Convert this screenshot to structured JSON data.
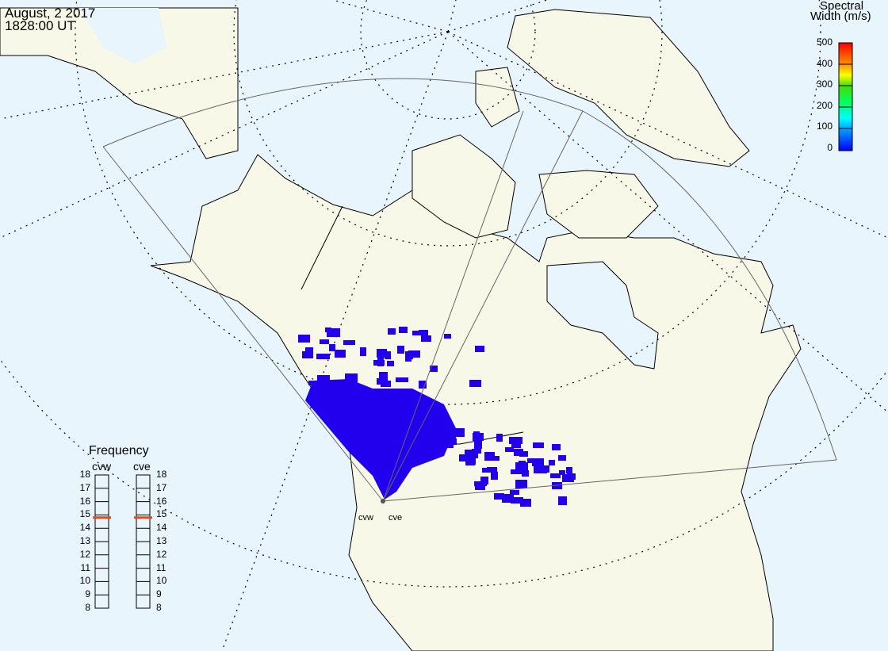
{
  "header": {
    "date": "August, 2 2017",
    "time": "1828:00 UT"
  },
  "colorbar": {
    "title_line1": "Spectral",
    "title_line2": "Width (m/s)",
    "ticks": [
      "500",
      "400",
      "300",
      "200",
      "100",
      "0"
    ],
    "range": [
      0,
      500
    ]
  },
  "radars": [
    {
      "name": "cvw"
    },
    {
      "name": "cve"
    }
  ],
  "frequency": {
    "title": "Frequency",
    "ticks": [
      "18",
      "17",
      "16",
      "15",
      "14",
      "13",
      "12",
      "11",
      "10",
      "9",
      "8"
    ],
    "range_mhz": [
      8,
      18
    ],
    "cvw_value_mhz": 14.8,
    "cve_value_mhz": 14.8,
    "marker_color": "#ff4000"
  },
  "colors": {
    "ocean": "#e8f5fc",
    "land": "#f8f8e8",
    "scatter": "#2200ee"
  }
}
